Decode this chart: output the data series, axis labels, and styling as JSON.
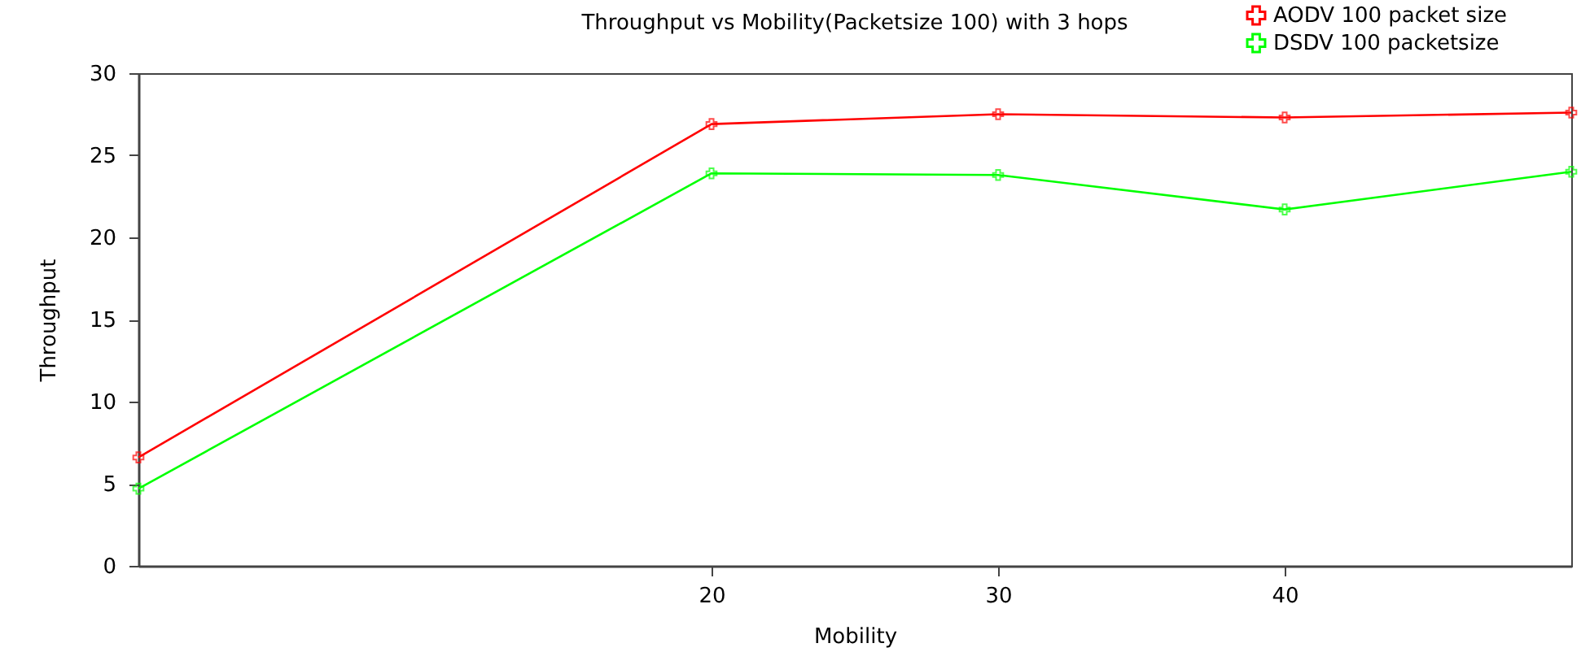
{
  "chart_data": {
    "type": "line",
    "title": "Throughput vs Mobility(Packetsize 100) with 3 hops",
    "xlabel": "Mobility",
    "ylabel": "Throughput",
    "x": [
      0,
      20,
      30,
      40,
      50
    ],
    "series": [
      {
        "name": "AODV 100 packet size",
        "color": "#ff0000",
        "marker": "cross",
        "values": [
          6.6,
          26.9,
          27.5,
          27.3,
          27.6
        ]
      },
      {
        "name": "DSDV 100 packetsize",
        "color": "#00ff00",
        "marker": "cross",
        "values": [
          4.7,
          23.9,
          23.8,
          21.7,
          24.0
        ]
      }
    ],
    "xlim": [
      0,
      50
    ],
    "xticks": [
      20,
      30,
      40
    ],
    "ylim": [
      0,
      30
    ],
    "yticks": [
      0,
      5,
      10,
      15,
      20,
      25,
      30
    ],
    "grid": false,
    "legend": "top right",
    "line_style": "solid"
  }
}
